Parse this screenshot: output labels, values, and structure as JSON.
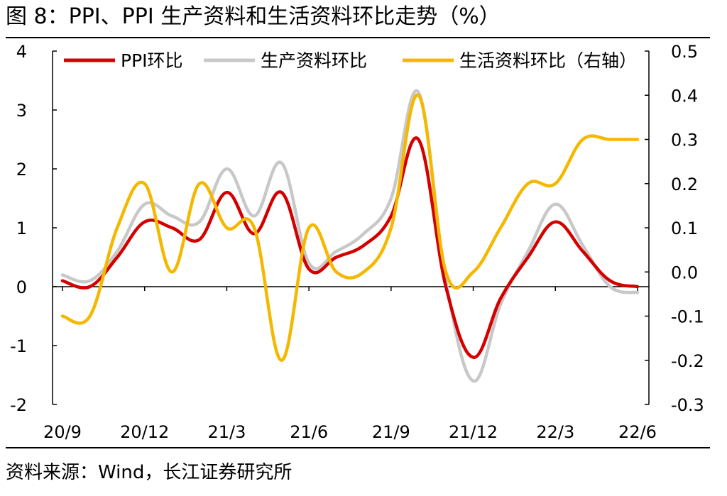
{
  "header": {
    "title": "图 8：PPI、PPI 生产资料和生活资料环比走势（%）"
  },
  "footer": {
    "source": "资料来源：Wind，长江证券研究所"
  },
  "chart_data": {
    "type": "line",
    "title": "图 8：PPI、PPI 生产资料和生活资料环比走势（%）",
    "xlabel": "",
    "ylabel": "",
    "categories": [
      "20/9",
      "20/10",
      "20/11",
      "20/12",
      "21/1",
      "21/2",
      "21/3",
      "21/4",
      "21/5",
      "21/6",
      "21/7",
      "21/8",
      "21/9",
      "21/10",
      "21/11",
      "21/12",
      "22/1",
      "22/2",
      "22/3",
      "22/4",
      "22/5",
      "22/6"
    ],
    "x_tick_labels": [
      "20/9",
      "20/12",
      "21/3",
      "21/6",
      "21/9",
      "21/12",
      "22/3",
      "22/6"
    ],
    "left_axis": {
      "ylim": [
        -2,
        4
      ],
      "ticks": [
        "-2",
        "-1",
        "0",
        "1",
        "2",
        "3",
        "4"
      ]
    },
    "right_axis": {
      "ylim": [
        -0.3,
        0.5
      ],
      "ticks": [
        "-0.3",
        "-0.2",
        "-0.1",
        "0.0",
        "0.1",
        "0.2",
        "0.3",
        "0.4",
        "0.5"
      ]
    },
    "series": [
      {
        "name": "PPI环比",
        "axis": "left",
        "color": "#d40000",
        "values": [
          0.1,
          0.0,
          0.5,
          1.1,
          1.0,
          0.8,
          1.6,
          0.9,
          1.6,
          0.3,
          0.5,
          0.7,
          1.2,
          2.5,
          0.0,
          -1.2,
          -0.2,
          0.5,
          1.1,
          0.6,
          0.1,
          0.0
        ]
      },
      {
        "name": "生产资料环比",
        "axis": "left",
        "color": "#c8c8c8",
        "values": [
          0.2,
          0.1,
          0.6,
          1.4,
          1.2,
          1.1,
          2.0,
          1.2,
          2.1,
          0.4,
          0.6,
          0.9,
          1.5,
          3.3,
          0.1,
          -1.6,
          -0.3,
          0.6,
          1.4,
          0.7,
          0.0,
          -0.1
        ]
      },
      {
        "name": "生活资料环比（右轴）",
        "axis": "right",
        "color": "#f5b800",
        "values": [
          -0.1,
          -0.1,
          0.1,
          0.2,
          0.0,
          0.2,
          0.1,
          0.1,
          -0.2,
          0.1,
          0.0,
          0.0,
          0.1,
          0.4,
          0.0,
          0.0,
          0.1,
          0.2,
          0.2,
          0.3,
          0.3,
          0.3
        ]
      }
    ],
    "legend": "top"
  }
}
